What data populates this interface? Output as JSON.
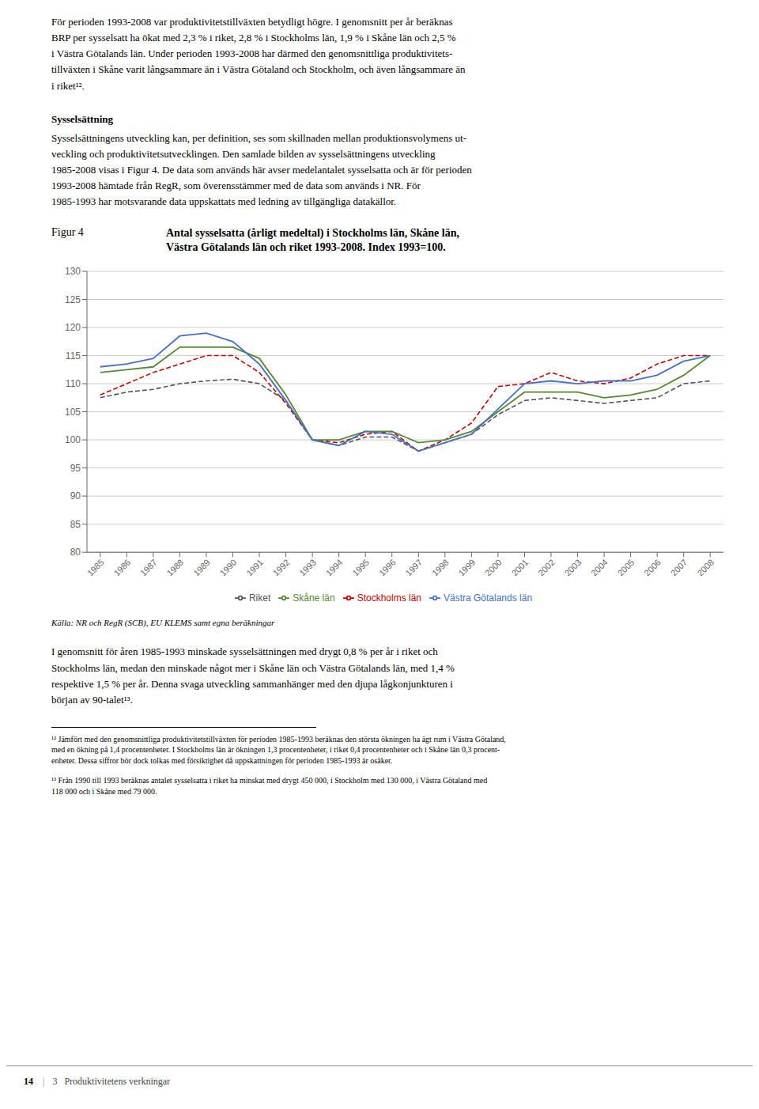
{
  "chart_data": {
    "type": "line",
    "title": "Antal sysselsatta (årligt medeltal) i Stockholms län, Skåne län,\nVästra Götalands län och riket 1993-2008. Index 1993=100.",
    "annotations": [
      "För perioden 1993-2008 var produktivitetstillväxten betydligt högre. I genomsnitt per år beräknas\nBRP per sysselsatt ha ökat med 2,3 % i riket, 2,8 % i Stockholms län, 1,9 % i Skåne län och 2,5 %\ni Västra Götalands län. Under perioden 1993-2008 har därmed den genomsnittliga produktivitets-\ntillväxten i Skåne varit långsammare än i Västra Götaland och Stockholm, och även långsammare än\ni riket¹².",
      "Sysselsättning",
      "Sysselsättningens utveckling kan, per definition, ses som skillnaden mellan produktionsvolymens ut-\nveckling och produktivitetsutvecklingen. Den samlade bilden av sysselsättningens utveckling\n1985-2008 visas i Figur 4. De data som används här avser ​medelantalet sysselsatta och är för perioden\n1993-2008 hämtade från RegR, som överensstämmer med de data som används i NR. För\n1985-1993 har motsvarande data uppskattats med ledning av tillgängliga datakällor.",
      "Figur 4",
      "Källa: NR och RegR (SCB), EU KLEMS samt egna beräkningar",
      "I genomsnitt för åren 1985-1993 minskade sysselsättningen med drygt 0,8 % per år i riket och\nStockholms län, medan den minskade något mer i Skåne län och Västra Götalands län, med 1,4 %\nrespektive 1,5 % per år. Denna svaga utveckling sammanhänger med den djupa lågkonjunkturen i\nbörjan av 90-talet¹³.",
      "¹² Jämfört med den genomsnittliga produktivitetstillväxten för perioden 1985-1993 beräknas den största ökningen ha ägt rum i Västra Götaland,\nmed en ökning på 1,4 procentenheter. I Stockholms län är ökningen 1,3 procentenheter, i riket 0,4 procentenheter och i Skåne län 0,3 procent-\nenheter. Dessa siffror bör dock tolkas med försiktighet då uppskattningen för perioden 1985-1993 är osäker.",
      "¹³ Från 1990 till 1993 beräknas antalet sysselsatta i riket ha minskat med drygt 450 000, i Stockholm med 130 000, i Västra Götaland med\n118 000 och i Skåne med 79 000.",
      "14",
      "|",
      "3   Produktivitetens verkningar"
    ],
    "x": [
      1985,
      1986,
      1987,
      1988,
      1989,
      1990,
      1991,
      1992,
      1993,
      1994,
      1995,
      1996,
      1997,
      1998,
      1999,
      2000,
      2001,
      2002,
      2003,
      2004,
      2005,
      2006,
      2007,
      2008
    ],
    "xlim": [
      1984.5,
      2008.5
    ],
    "xticks": [
      1985,
      1986,
      1987,
      1988,
      1989,
      1990,
      1991,
      1992,
      1993,
      1994,
      1995,
      1996,
      1997,
      1998,
      1999,
      2000,
      2001,
      2002,
      2003,
      2004,
      2005,
      2006,
      2007,
      2008
    ],
    "ylim": [
      80,
      130
    ],
    "yticks": [
      80,
      85,
      90,
      95,
      100,
      105,
      110,
      115,
      120,
      125,
      130
    ],
    "grid": true,
    "legend": "bottom",
    "series": [
      {
        "name": "Riket",
        "color": "#555555",
        "line_style": "dashed",
        "values": [
          107.5,
          108.5,
          109.0,
          110.0,
          110.5,
          110.8,
          110.0,
          107.0,
          100.0,
          99.0,
          100.5,
          100.5,
          98.0,
          99.5,
          101.0,
          104.5,
          107.0,
          107.5,
          107.0,
          106.5,
          107.0,
          107.5,
          110.0,
          110.5
        ]
      },
      {
        "name": "Stockholms län",
        "color": "#cc0000",
        "line_style": "dashed",
        "values": [
          108.0,
          110.0,
          112.0,
          113.5,
          115.0,
          115.0,
          112.0,
          106.5,
          100.0,
          99.5,
          101.0,
          101.5,
          98.0,
          100.0,
          103.0,
          109.5,
          110.0,
          112.0,
          110.5,
          110.0,
          111.0,
          113.5,
          115.0,
          115.0
        ]
      },
      {
        "name": "Skåne län",
        "color": "#558833",
        "line_style": "solid",
        "values": [
          112.0,
          112.5,
          113.0,
          116.5,
          116.5,
          116.5,
          114.5,
          108.0,
          100.0,
          100.0,
          101.5,
          101.5,
          99.5,
          100.0,
          101.5,
          105.0,
          108.5,
          108.5,
          108.5,
          107.5,
          108.0,
          109.0,
          111.5,
          115.0
        ]
      },
      {
        "name": "Västra Götalands län",
        "color": "#4472c4",
        "line_style": "solid",
        "values": [
          113.0,
          113.5,
          114.5,
          118.5,
          119.0,
          117.5,
          113.5,
          107.0,
          100.0,
          99.0,
          101.5,
          101.0,
          98.0,
          99.5,
          101.0,
          105.5,
          110.0,
          110.5,
          110.0,
          110.5,
          110.5,
          111.5,
          114.0,
          115.0
        ]
      }
    ]
  }
}
